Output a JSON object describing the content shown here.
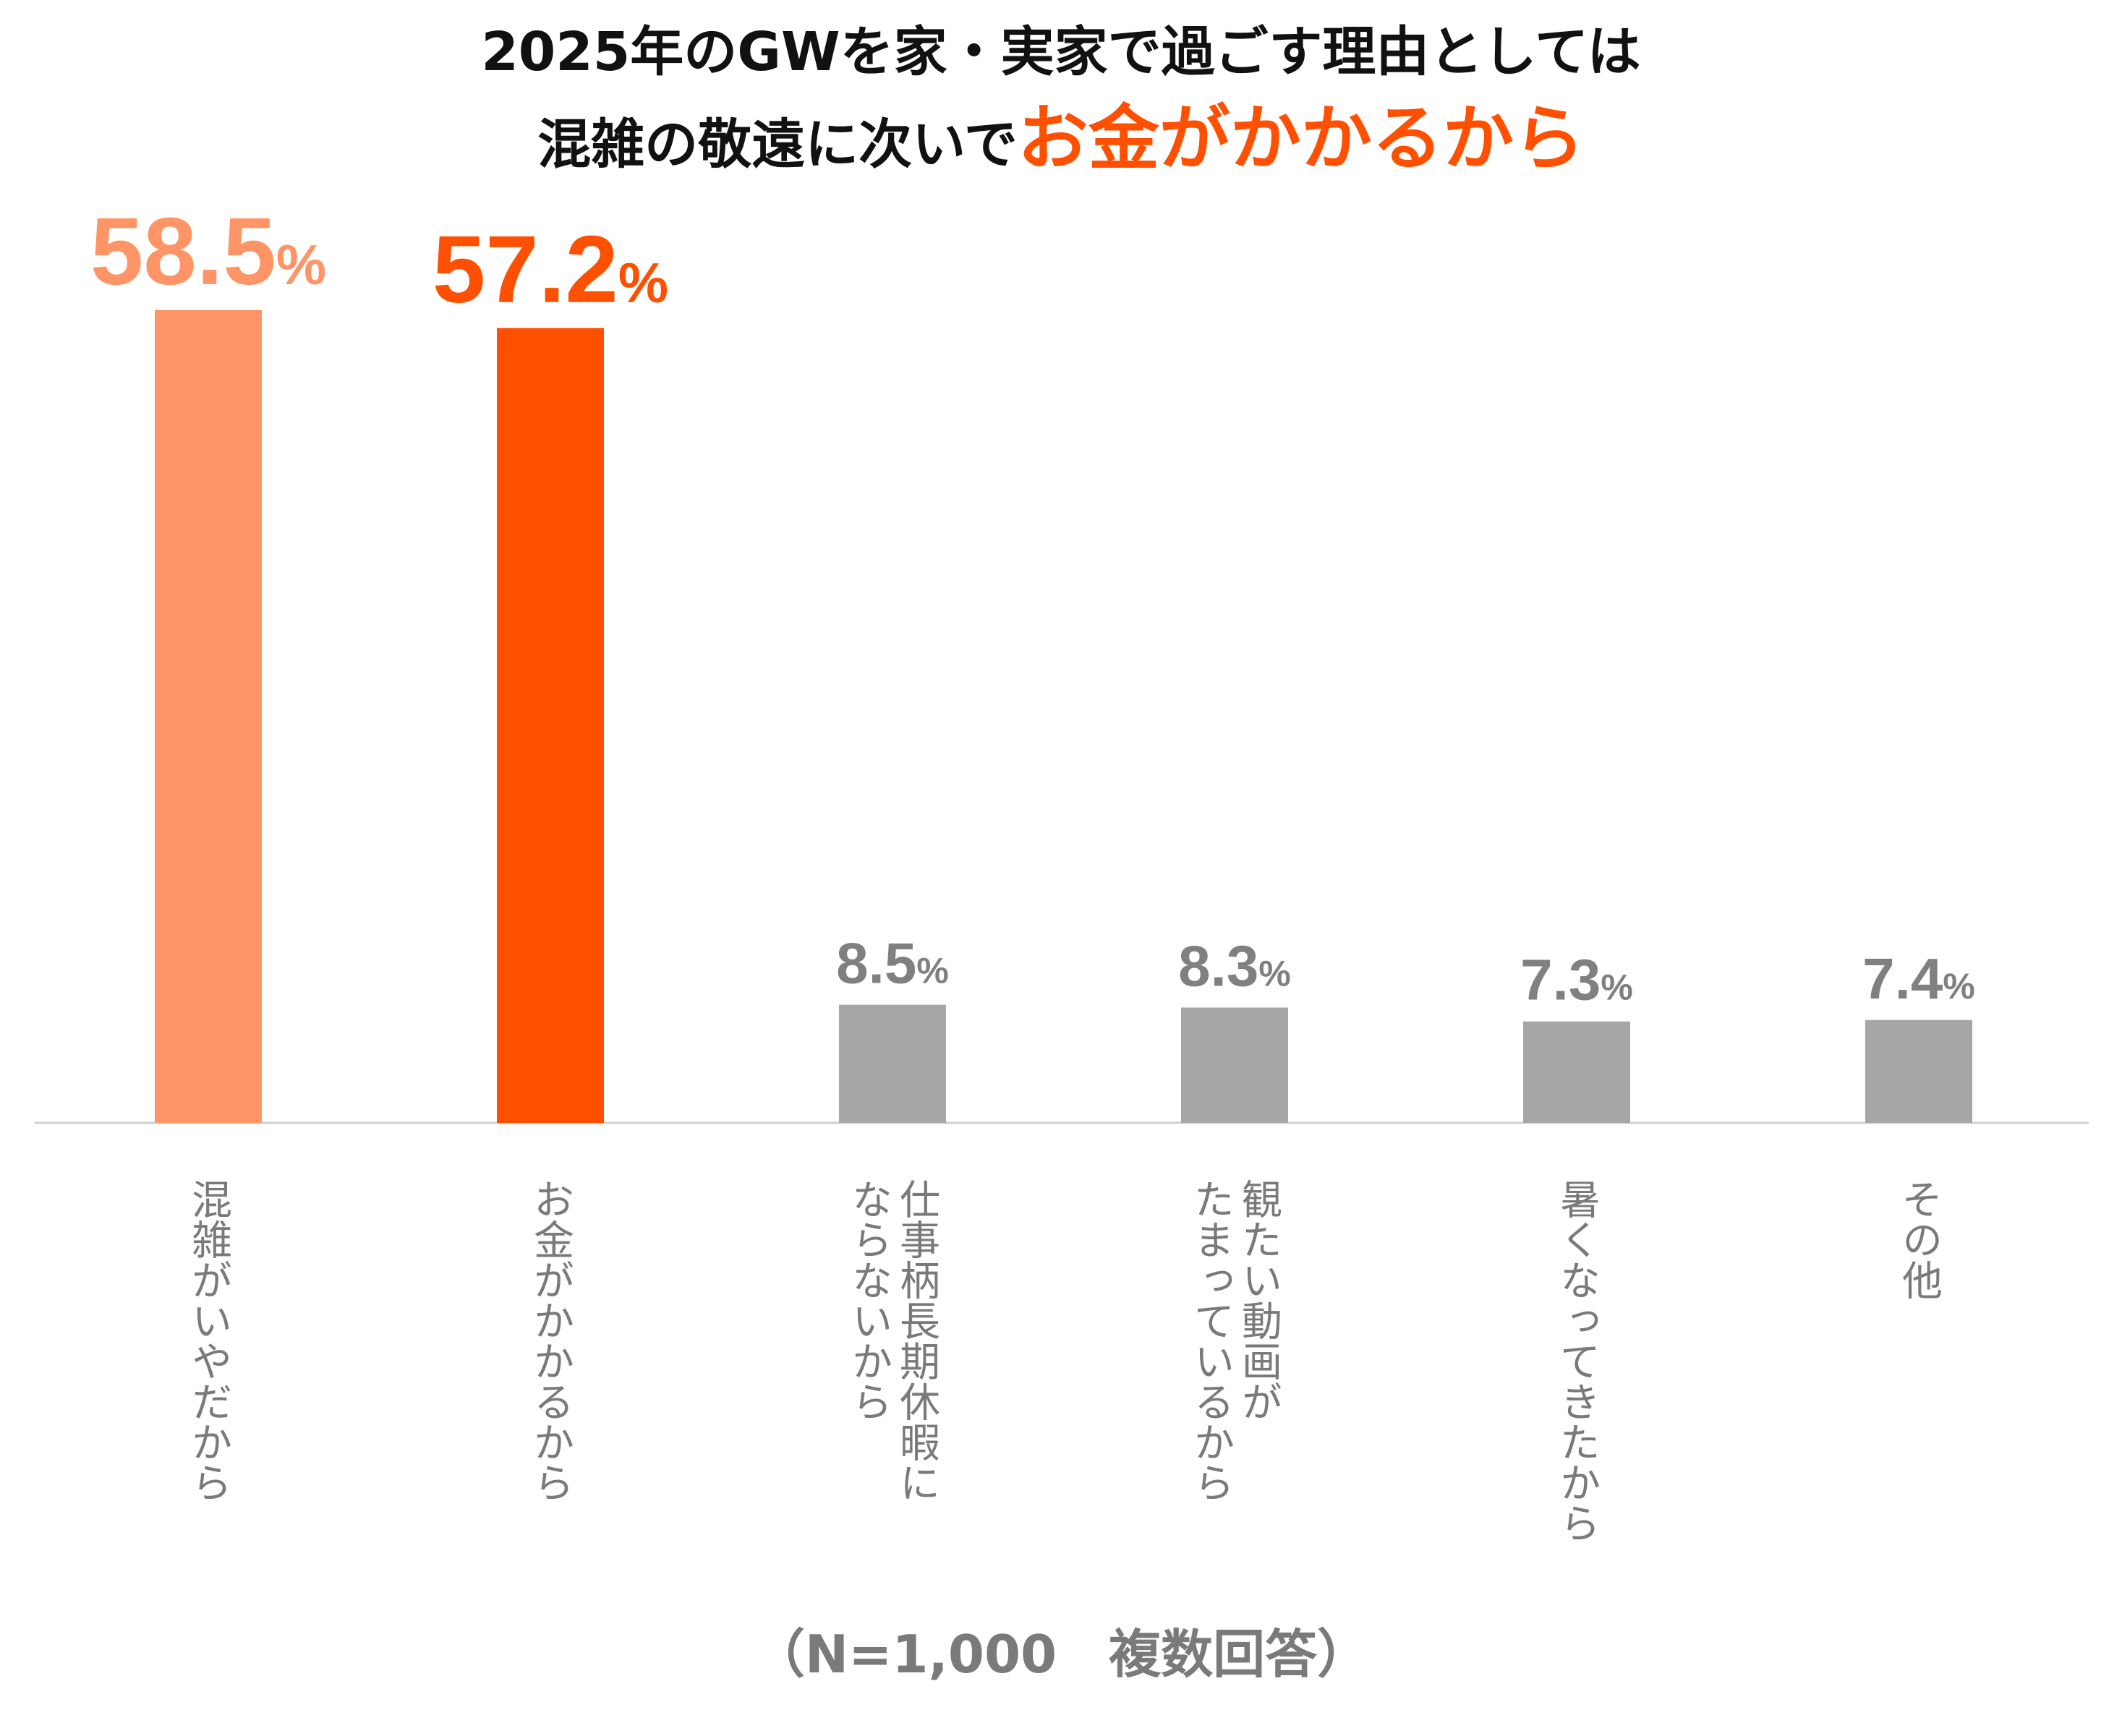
{
  "title": {
    "line1": "2025年のGWを家・実家で過ごす理由としては",
    "line2_prefix": "混雑の敬遠に次いで",
    "line2_highlight": "お金がかかるから"
  },
  "note": "（N=1,000　複数回答）",
  "colors": {
    "highlight_light": "#ff9466",
    "highlight": "#ff4f00",
    "other": "#a6a6a6",
    "label_text": "#7a7a7a",
    "axis": "#d0d0d0"
  },
  "chart_data": {
    "type": "bar",
    "unit": "%",
    "ylim": [
      0,
      60
    ],
    "grid": false,
    "categories": [
      [
        "混雑がいやだから"
      ],
      [
        "お金がかかるから"
      ],
      [
        "仕事柄長期休暇に",
        "ならないから"
      ],
      [
        "観たい動画が",
        "たまっているから"
      ],
      [
        "暑くなってきたから"
      ],
      [
        "その他"
      ]
    ],
    "values": [
      58.5,
      57.2,
      8.5,
      8.3,
      7.3,
      7.4
    ],
    "value_labels": [
      "58.5",
      "57.2",
      "8.5",
      "8.3",
      "7.3",
      "7.4"
    ],
    "bar_colors": [
      "#ff9466",
      "#ff4f00",
      "#a6a6a6",
      "#a6a6a6",
      "#a6a6a6",
      "#a6a6a6"
    ]
  }
}
